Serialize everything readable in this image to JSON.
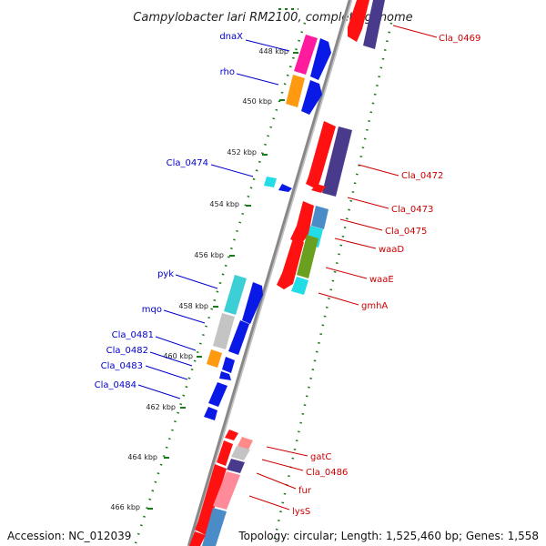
{
  "title": "Campylobacter lari RM2100, complete genome",
  "accession": "Accession: NC_012039",
  "topology": "Topology: circular; Length: 1,525,460 bp; Genes: 1,558",
  "colors": {
    "label_left": "#0000cc",
    "label_right": "#cc0000",
    "ruler_dot": "#1a7a1a",
    "backbone": "#888888"
  },
  "ticks": [
    "448 kbp",
    "450 kbp",
    "452 kbp",
    "454 kbp",
    "456 kbp",
    "458 kbp",
    "460 kbp",
    "462 kbp",
    "464 kbp",
    "466 kbp"
  ],
  "genes_left": [
    "dnaX",
    "rho",
    "Cla_0474",
    "pyk",
    "mqo",
    "Cla_0481",
    "Cla_0482",
    "Cla_0483",
    "Cla_0484"
  ],
  "genes_right": [
    "Cla_0469",
    "Cla_0472",
    "Cla_0473",
    "Cla_0475",
    "waaD",
    "waaE",
    "gmhA",
    "gatC",
    "Cla_0486",
    "fur",
    "lysS"
  ]
}
